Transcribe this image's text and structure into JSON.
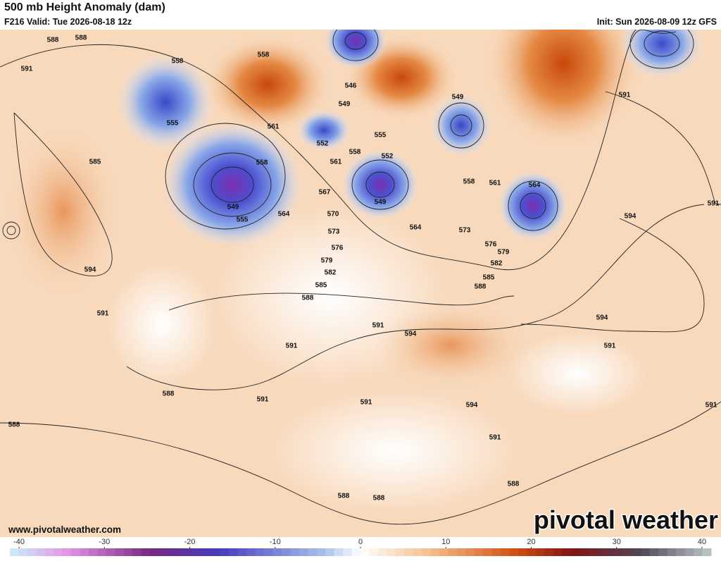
{
  "header": {
    "title": "500 mb Height Anomaly (dam)",
    "valid": "F216 Valid: Tue 2026-08-18 12z",
    "init": "Init: Sun 2026-08-09 12z GFS"
  },
  "contour_labels": [
    588,
    588,
    591,
    558,
    558,
    555,
    585,
    561,
    558,
    549,
    555,
    564,
    567,
    561,
    558,
    555,
    552,
    546,
    549,
    549,
    552,
    549,
    570,
    573,
    576,
    579,
    582,
    585,
    588,
    564,
    573,
    558,
    561,
    564,
    576,
    579,
    582,
    585,
    588,
    591,
    594,
    591,
    594,
    591,
    588,
    591,
    591,
    594,
    594,
    591,
    591,
    591,
    594,
    591,
    591,
    588,
    588,
    588,
    588
  ],
  "footer": {
    "website": "www.pivotalweather.com",
    "logo": "pivotal weather"
  },
  "colorbar": {
    "xlim": [
      -40,
      40
    ],
    "ticks": [
      -40,
      -30,
      -20,
      -10,
      0,
      10,
      20,
      30,
      40
    ]
  }
}
